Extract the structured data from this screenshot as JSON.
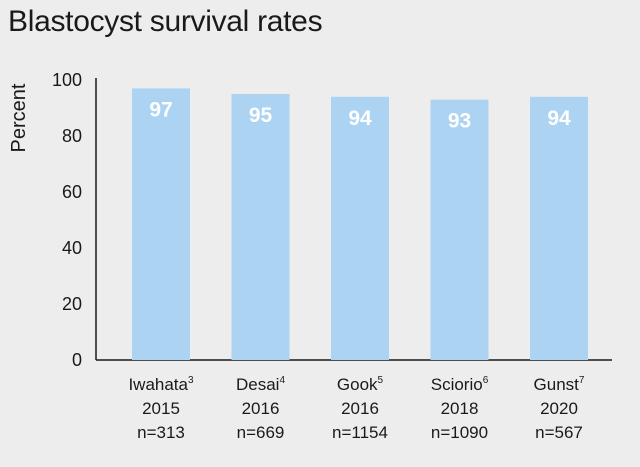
{
  "title": "Blastocyst survival rates",
  "chart_data": {
    "type": "bar",
    "title": "Blastocyst survival rates",
    "ylabel": "Percent",
    "xlabel": "",
    "ylim": [
      0,
      100
    ],
    "yticks": [
      0,
      20,
      40,
      60,
      80,
      100
    ],
    "grid": false,
    "bar_color": "#acd4f2",
    "categories": [
      {
        "name": "Iwahata",
        "ref": "3",
        "year": "2015",
        "n": "n=313"
      },
      {
        "name": "Desai",
        "ref": "4",
        "year": "2016",
        "n": "n=669"
      },
      {
        "name": "Gook",
        "ref": "5",
        "year": "2016",
        "n": "n=1154"
      },
      {
        "name": "Sciorio",
        "ref": "6",
        "year": "2018",
        "n": "n=1090"
      },
      {
        "name": "Gunst",
        "ref": "7",
        "year": "2020",
        "n": "n=567"
      }
    ],
    "values": [
      97,
      95,
      94,
      93,
      94
    ]
  }
}
